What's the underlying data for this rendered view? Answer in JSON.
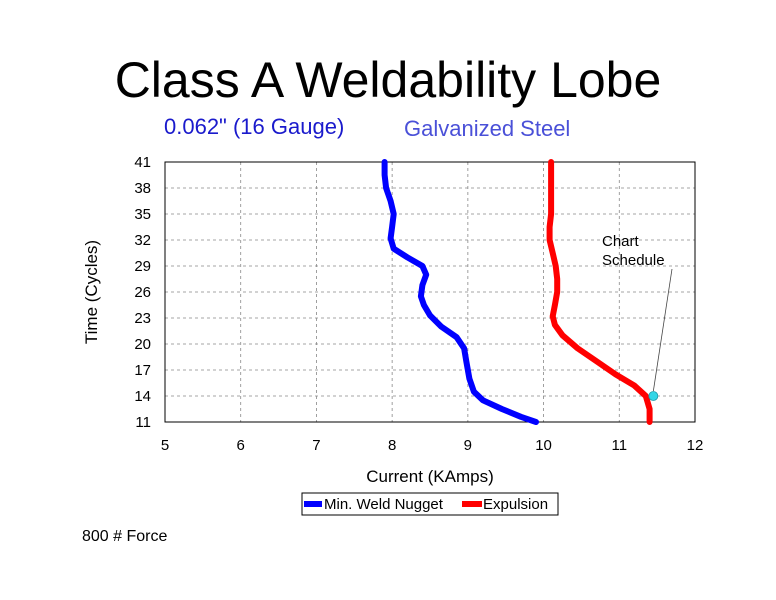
{
  "chart_data": {
    "type": "line",
    "title": "Class A Weldability Lobe",
    "subtitle_1": "0.062\" (16 Gauge)",
    "subtitle_2": "Galvanized Steel",
    "xlabel": "Current (KAmps)",
    "ylabel": "Time (Cycles)",
    "xlim": [
      5,
      12
    ],
    "ylim": [
      11,
      41
    ],
    "x_ticks": [
      "5",
      "6",
      "7",
      "8",
      "9",
      "10",
      "11",
      "12"
    ],
    "y_ticks": [
      "11",
      "14",
      "17",
      "20",
      "23",
      "26",
      "29",
      "32",
      "35",
      "38",
      "41"
    ],
    "grid": true,
    "legend_position": "bottom-center",
    "series": [
      {
        "name": "Min. Weld Nugget",
        "color": "#0000ff",
        "points": [
          [
            9.9,
            11
          ],
          [
            9.7,
            11.6
          ],
          [
            9.45,
            12.5
          ],
          [
            9.2,
            13.5
          ],
          [
            9.08,
            14.5
          ],
          [
            9.02,
            16
          ],
          [
            8.98,
            18
          ],
          [
            8.95,
            19.5
          ],
          [
            8.85,
            20.8
          ],
          [
            8.65,
            22
          ],
          [
            8.5,
            23.3
          ],
          [
            8.42,
            24.5
          ],
          [
            8.38,
            25.5
          ],
          [
            8.4,
            26.8
          ],
          [
            8.45,
            28
          ],
          [
            8.4,
            29
          ],
          [
            8.2,
            30
          ],
          [
            8.02,
            31
          ],
          [
            7.98,
            32.2
          ],
          [
            8.0,
            33.5
          ],
          [
            8.02,
            35
          ],
          [
            7.98,
            36.5
          ],
          [
            7.92,
            38
          ],
          [
            7.9,
            39.5
          ],
          [
            7.9,
            41
          ]
        ]
      },
      {
        "name": "Expulsion",
        "color": "#ff0000",
        "points": [
          [
            11.4,
            11
          ],
          [
            11.4,
            12.5
          ],
          [
            11.35,
            14
          ],
          [
            11.2,
            15.2
          ],
          [
            10.95,
            16.5
          ],
          [
            10.7,
            18
          ],
          [
            10.45,
            19.5
          ],
          [
            10.25,
            21
          ],
          [
            10.15,
            22.2
          ],
          [
            10.12,
            23.2
          ],
          [
            10.15,
            24.5
          ],
          [
            10.18,
            26
          ],
          [
            10.18,
            27.5
          ],
          [
            10.16,
            29
          ],
          [
            10.12,
            30.5
          ],
          [
            10.08,
            32
          ],
          [
            10.08,
            33.5
          ],
          [
            10.1,
            35
          ],
          [
            10.1,
            36.5
          ],
          [
            10.1,
            38
          ],
          [
            10.1,
            39.5
          ],
          [
            10.1,
            41
          ]
        ]
      }
    ],
    "annotations": [
      {
        "line1": "Chart",
        "line2": "Schedule",
        "point": [
          11.45,
          14
        ],
        "marker_color": "#33d6e6"
      }
    ]
  },
  "footer": {
    "force_label": "800 # Force"
  }
}
